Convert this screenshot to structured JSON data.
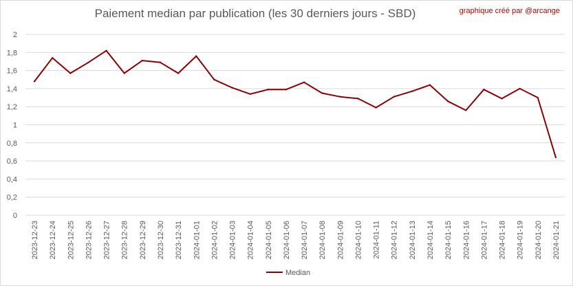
{
  "chart_data": {
    "type": "line",
    "title": "Paiement median par publication (les 30 derniers jours - SBD)",
    "credit": "graphique créé par @arcange",
    "categories": [
      "2023-12-23",
      "2023-12-24",
      "2023-12-25",
      "2023-12-26",
      "2023-12-27",
      "2023-12-28",
      "2023-12-29",
      "2023-12-30",
      "2023-12-31",
      "2024-01-01",
      "2024-01-02",
      "2024-01-03",
      "2024-01-04",
      "2024-01-05",
      "2024-01-06",
      "2024-01-07",
      "2024-01-08",
      "2024-01-09",
      "2024-01-10",
      "2024-01-11",
      "2024-01-12",
      "2024-01-13",
      "2024-01-14",
      "2024-01-15",
      "2024-01-16",
      "2024-01-17",
      "2024-01-18",
      "2024-01-19",
      "2024-01-20",
      "2024-01-21"
    ],
    "series": [
      {
        "name": "Median",
        "color": "#8b0000",
        "values": [
          1.48,
          1.74,
          1.57,
          1.69,
          1.82,
          1.57,
          1.71,
          1.69,
          1.57,
          1.76,
          1.5,
          1.41,
          1.34,
          1.39,
          1.39,
          1.47,
          1.35,
          1.31,
          1.29,
          1.19,
          1.31,
          1.37,
          1.44,
          1.26,
          1.16,
          1.39,
          1.29,
          1.4,
          1.3,
          0.64
        ]
      }
    ],
    "yticks": [
      "0",
      "0,2",
      "0,4",
      "0,6",
      "0,8",
      "1",
      "1,2",
      "1,4",
      "1,6",
      "1,8",
      "2"
    ],
    "ylim": [
      0,
      2
    ],
    "grid": true,
    "legend_position": "bottom"
  }
}
